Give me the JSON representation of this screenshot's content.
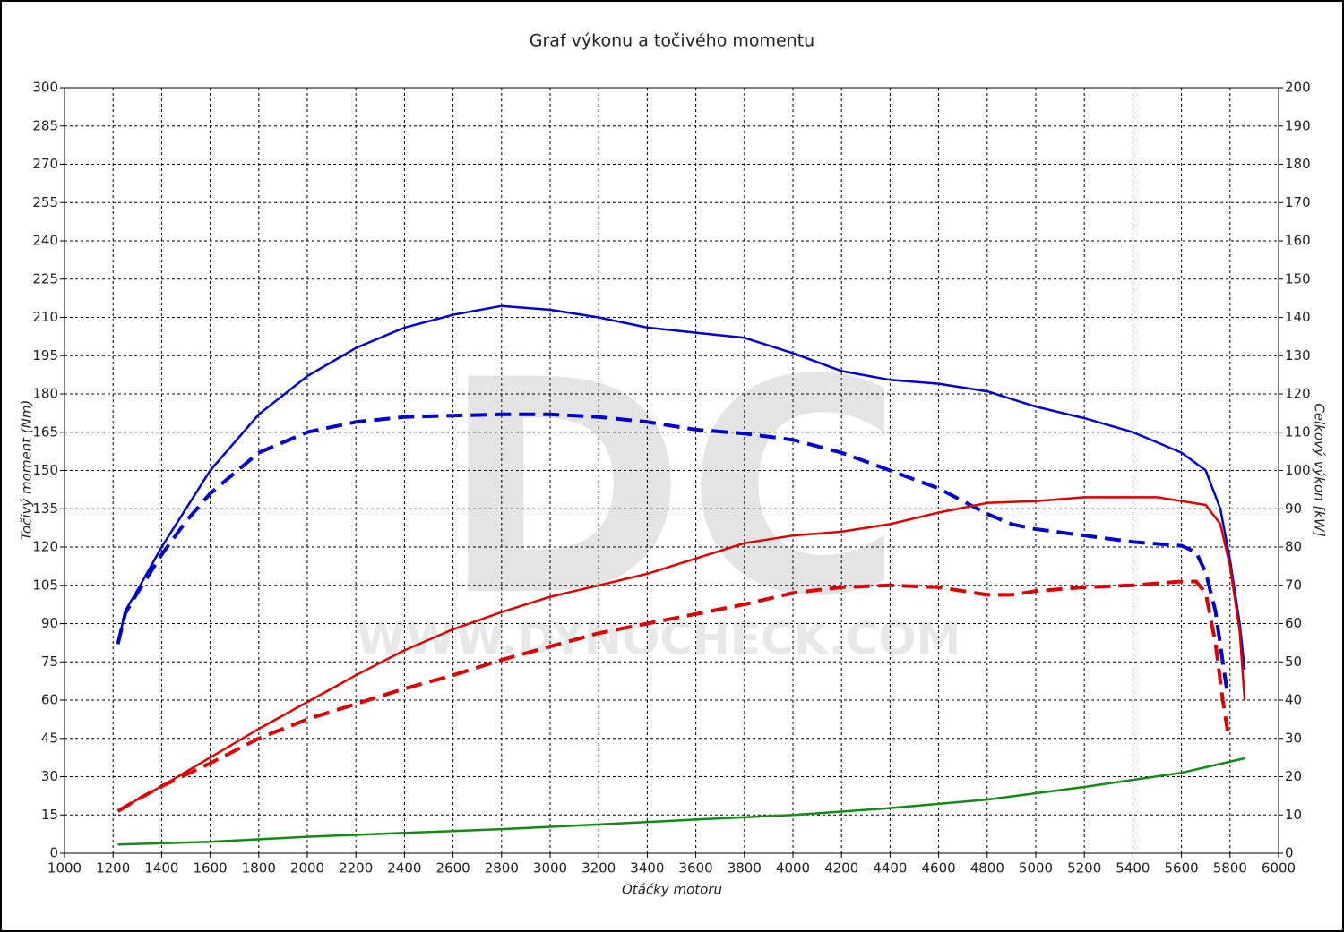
{
  "chart_data": {
    "type": "line",
    "title": "Graf výkonu a točivého momentu",
    "xlabel": "Otáčky motoru",
    "ylabel": "Točivý moment (Nm)",
    "y2label": "Celkový výkon [kW]",
    "watermark": "DC",
    "watermark_url": "WWW.DYNOCHECK.COM",
    "xlim": [
      1000,
      6000
    ],
    "xticks": [
      1000,
      1200,
      1400,
      1600,
      1800,
      2000,
      2200,
      2400,
      2600,
      2800,
      3000,
      3200,
      3400,
      3600,
      3800,
      4000,
      4200,
      4400,
      4600,
      4800,
      5000,
      5200,
      5400,
      5600,
      5800,
      6000
    ],
    "ylim": [
      0,
      300
    ],
    "yticks": [
      0,
      15,
      30,
      45,
      60,
      75,
      90,
      105,
      120,
      135,
      150,
      165,
      180,
      195,
      210,
      225,
      240,
      255,
      270,
      285,
      300
    ],
    "y2lim": [
      0,
      200
    ],
    "y2ticks": [
      0,
      10,
      20,
      30,
      40,
      50,
      60,
      70,
      80,
      90,
      100,
      110,
      120,
      130,
      140,
      150,
      160,
      170,
      180,
      190,
      200
    ],
    "grid": true,
    "series": [
      {
        "color": "#0000cc",
        "dash": false,
        "x": [
          1220,
          1250,
          1300,
          1400,
          1500,
          1600,
          1800,
          2000,
          2200,
          2400,
          2600,
          2800,
          3000,
          3200,
          3400,
          3600,
          3800,
          4000,
          4200,
          4400,
          4600,
          4800,
          5000,
          5200,
          5400,
          5600,
          5700,
          5760,
          5800,
          5840,
          5860
        ],
        "values": [
          82,
          95,
          103,
          120,
          135,
          150,
          172,
          187,
          198,
          206,
          211,
          214.5,
          213,
          210,
          206,
          204,
          202,
          196,
          189,
          185.5,
          184,
          181,
          175,
          170.5,
          165,
          157,
          150,
          135,
          115,
          90,
          72
        ]
      },
      {
        "color": "#0000cc",
        "dash": true,
        "x": [
          1220,
          1250,
          1300,
          1400,
          1500,
          1600,
          1800,
          2000,
          2200,
          2400,
          2600,
          2800,
          3000,
          3200,
          3400,
          3600,
          3800,
          4000,
          4200,
          4400,
          4600,
          4700,
          4800,
          4900,
          5000,
          5200,
          5400,
          5600,
          5660,
          5700,
          5740,
          5770,
          5790
        ],
        "values": [
          82,
          94,
          102,
          117,
          130,
          141,
          157,
          165,
          169,
          171,
          171.5,
          172,
          172,
          171,
          169,
          166,
          164.5,
          162,
          157,
          150,
          143,
          138,
          133,
          129,
          127,
          124.5,
          122,
          120.5,
          118,
          110,
          95,
          75,
          62
        ]
      },
      {
        "color": "#dd0000",
        "dash": false,
        "axis": "y2",
        "x": [
          1220,
          1300,
          1400,
          1600,
          1800,
          2000,
          2200,
          2400,
          2600,
          2800,
          3000,
          3200,
          3400,
          3600,
          3800,
          4000,
          4200,
          4400,
          4600,
          4800,
          5000,
          5200,
          5400,
          5500,
          5600,
          5700,
          5760,
          5800,
          5840,
          5860
        ],
        "values": [
          11,
          14,
          17.5,
          25,
          32.5,
          39.5,
          46.5,
          53,
          58.5,
          63,
          67,
          70,
          73,
          77,
          81,
          83,
          84,
          86,
          89,
          91.5,
          92,
          93,
          93,
          93,
          92,
          91,
          86,
          75,
          58,
          40
        ]
      },
      {
        "color": "#dd0000",
        "dash": true,
        "axis": "y2",
        "x": [
          1220,
          1300,
          1400,
          1600,
          1800,
          2000,
          2200,
          2400,
          2600,
          2800,
          3000,
          3200,
          3400,
          3600,
          3800,
          4000,
          4200,
          4400,
          4600,
          4800,
          4900,
          5000,
          5200,
          5400,
          5600,
          5660,
          5700,
          5740,
          5770,
          5790
        ],
        "values": [
          11,
          14,
          17.5,
          23.5,
          30,
          35,
          39,
          43,
          46.5,
          50.5,
          54,
          57.5,
          60,
          62.5,
          65,
          68,
          69.5,
          70,
          69.5,
          67.5,
          67.5,
          68.5,
          69.5,
          70,
          71,
          71,
          68,
          55,
          40,
          32
        ]
      },
      {
        "color": "#138a13",
        "dash": false,
        "axis": "y2",
        "x": [
          1220,
          1600,
          2000,
          2400,
          2800,
          3200,
          3600,
          4000,
          4400,
          4800,
          5200,
          5600,
          5860
        ],
        "values": [
          2.3,
          3,
          4.3,
          5.3,
          6.3,
          7.5,
          8.8,
          10,
          11.8,
          14,
          17.3,
          21,
          24.8
        ]
      }
    ]
  }
}
